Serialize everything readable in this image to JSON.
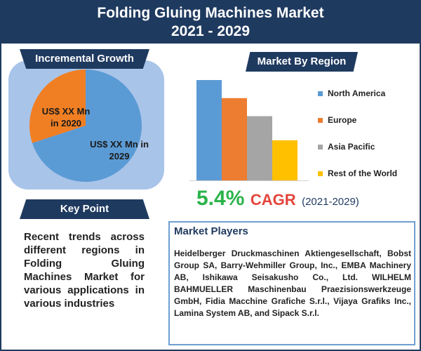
{
  "header": {
    "line1": "Folding Gluing Machines Market",
    "line2": "2021 - 2029"
  },
  "incremental_growth": {
    "title": "Incremental Growth",
    "label_2020": "US$ XX Mn in 2020",
    "label_2029": "US$ XX Mn in 2029"
  },
  "region": {
    "title": "Market By Region"
  },
  "cagr": {
    "value": "5.4%",
    "label": "CAGR",
    "period": "(2021-2029)"
  },
  "key_point": {
    "title": "Key Point",
    "text": "Recent trends across different regions in Folding Gluing Machines Market for various applications in various industries"
  },
  "market_players": {
    "title": "Market Players",
    "text": "Heidelberger Druckmaschinen Aktiengesellschaft, Bobst Group SA, Barry-Wehmiller Group, Inc., EMBA Machinery AB, Ishikawa Seisakusho Co., Ltd. WILHELM BAHMUELLER Maschinenbau Praezisionswerkzeuge GmbH, Fidia Macchine Grafiche S.r.l., Vijaya Grafiks Inc., Lamina System AB, and Sipack S.r.l."
  },
  "chart_data": [
    {
      "type": "pie",
      "categories": [
        "2020",
        "2029"
      ],
      "values": [
        30,
        70
      ],
      "colors": [
        "#f07f24",
        "#5b9bd5"
      ]
    },
    {
      "type": "bar",
      "categories": [
        "North America",
        "Europe",
        "Asia Pacific",
        "Rest of the World"
      ],
      "values": [
        100,
        82,
        64,
        40
      ],
      "colors": [
        "#5b9bd5",
        "#ed7d31",
        "#a5a5a5",
        "#ffc000"
      ],
      "legend_position": "right"
    }
  ]
}
